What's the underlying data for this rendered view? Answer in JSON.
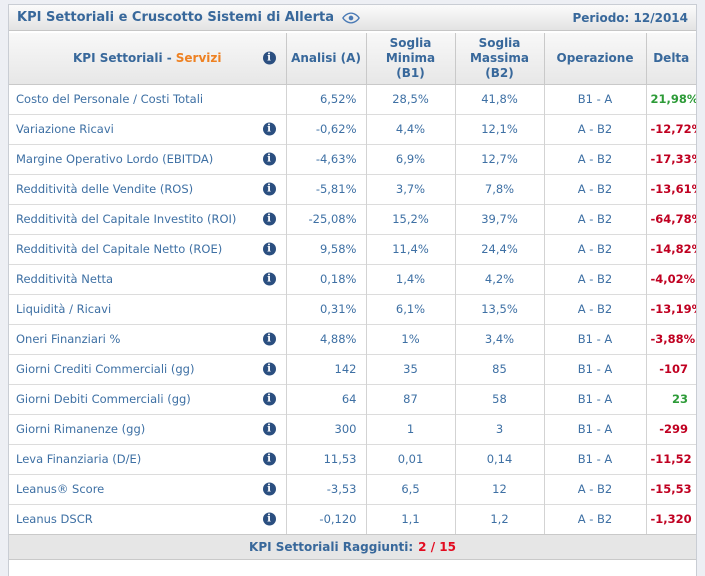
{
  "titlebar": {
    "title": "KPI Settoriali e Cruscotto Sistemi di Allerta",
    "period_label": "Periodo: 12/2014"
  },
  "table": {
    "header": {
      "kpi_label": "KPI Settoriali -",
      "sector_label": "Servizi",
      "columns": [
        "Analisi (A)",
        "Soglia Minima (B1)",
        "Soglia Massima (B2)",
        "Operazione",
        "Delta"
      ]
    },
    "rows": [
      {
        "name": "Costo del Personale / Costi Totali",
        "info": false,
        "analisi": "6,52%",
        "soglia_minima": "28,5%",
        "soglia_massima": "41,8%",
        "operazione": "B1 - A",
        "delta": "21,98%",
        "delta_color": "green"
      },
      {
        "name": "Variazione Ricavi",
        "info": true,
        "analisi": "-0,62%",
        "soglia_minima": "4,4%",
        "soglia_massima": "12,1%",
        "operazione": "A - B2",
        "delta": "-12,72%",
        "delta_color": "red"
      },
      {
        "name": "Margine Operativo Lordo (EBITDA)",
        "info": true,
        "analisi": "-4,63%",
        "soglia_minima": "6,9%",
        "soglia_massima": "12,7%",
        "operazione": "A - B2",
        "delta": "-17,33%",
        "delta_color": "red"
      },
      {
        "name": "Redditività delle Vendite (ROS)",
        "info": true,
        "analisi": "-5,81%",
        "soglia_minima": "3,7%",
        "soglia_massima": "7,8%",
        "operazione": "A - B2",
        "delta": "-13,61%",
        "delta_color": "red"
      },
      {
        "name": "Redditività del Capitale Investito (ROI)",
        "info": true,
        "analisi": "-25,08%",
        "soglia_minima": "15,2%",
        "soglia_massima": "39,7%",
        "operazione": "A - B2",
        "delta": "-64,78%",
        "delta_color": "red"
      },
      {
        "name": "Redditività del Capitale Netto (ROE)",
        "info": true,
        "analisi": "9,58%",
        "soglia_minima": "11,4%",
        "soglia_massima": "24,4%",
        "operazione": "A - B2",
        "delta": "-14,82%",
        "delta_color": "red"
      },
      {
        "name": "Redditività Netta",
        "info": true,
        "analisi": "0,18%",
        "soglia_minima": "1,4%",
        "soglia_massima": "4,2%",
        "operazione": "A - B2",
        "delta": "-4,02%",
        "delta_color": "red"
      },
      {
        "name": "Liquidità / Ricavi",
        "info": false,
        "analisi": "0,31%",
        "soglia_minima": "6,1%",
        "soglia_massima": "13,5%",
        "operazione": "A - B2",
        "delta": "-13,19%",
        "delta_color": "red"
      },
      {
        "name": "Oneri Finanziari %",
        "info": true,
        "analisi": "4,88%",
        "soglia_minima": "1%",
        "soglia_massima": "3,4%",
        "operazione": "B1 - A",
        "delta": "-3,88%",
        "delta_color": "red"
      },
      {
        "name": "Giorni Crediti Commerciali (gg)",
        "info": true,
        "analisi": "142",
        "soglia_minima": "35",
        "soglia_massima": "85",
        "operazione": "B1 - A",
        "delta": "-107",
        "delta_color": "red"
      },
      {
        "name": "Giorni Debiti Commerciali (gg)",
        "info": true,
        "analisi": "64",
        "soglia_minima": "87",
        "soglia_massima": "58",
        "operazione": "B1 - A",
        "delta": "23",
        "delta_color": "green"
      },
      {
        "name": "Giorni Rimanenze (gg)",
        "info": true,
        "analisi": "300",
        "soglia_minima": "1",
        "soglia_massima": "3",
        "operazione": "B1 - A",
        "delta": "-299",
        "delta_color": "red"
      },
      {
        "name": "Leva Finanziaria (D/E)",
        "info": true,
        "analisi": "11,53",
        "soglia_minima": "0,01",
        "soglia_massima": "0,14",
        "operazione": "B1 - A",
        "delta": "-11,52",
        "delta_color": "red"
      },
      {
        "name": "Leanus® Score",
        "info": true,
        "analisi": "-3,53",
        "soglia_minima": "6,5",
        "soglia_massima": "12",
        "operazione": "A - B2",
        "delta": "-15,53",
        "delta_color": "red"
      },
      {
        "name": "Leanus DSCR",
        "info": true,
        "analisi": "-0,120",
        "soglia_minima": "1,1",
        "soglia_massima": "1,2",
        "operazione": "A - B2",
        "delta": "-1,320",
        "delta_color": "red"
      }
    ]
  },
  "footer": {
    "label": "KPI Settoriali Raggiunti:",
    "value": "2 / 15"
  },
  "colors": {
    "header_blue": "#38689b",
    "value_blue": "#3e70a4",
    "sector_orange": "#ee8122",
    "delta_green": "#2d9b38",
    "delta_red": "#c00021",
    "footer_red": "#e30b20",
    "info_navy": "#2b4f80"
  }
}
